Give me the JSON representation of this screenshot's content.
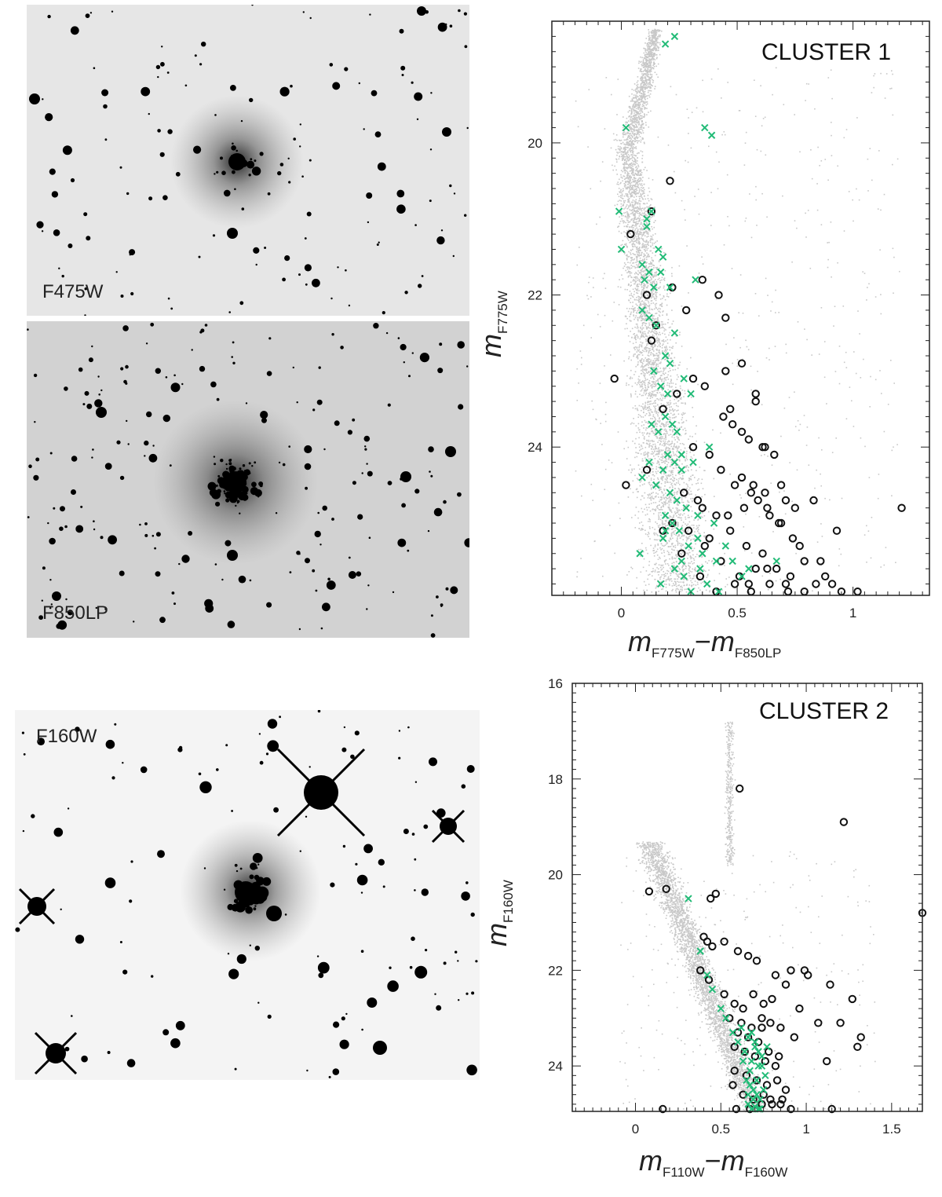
{
  "images": [
    {
      "label": "F475W",
      "background": "#e6e6e6"
    },
    {
      "label": "F850LP",
      "background": "#d2d2d2"
    },
    {
      "label": "F160W",
      "background": "#f4f4f4"
    }
  ],
  "chart_data": [
    {
      "type": "scatter",
      "title": "CLUSTER 1",
      "xlabel": {
        "m": "m",
        "sub1": "F775W",
        "minus": "−",
        "m2": "m",
        "sub2": "F850LP"
      },
      "ylabel": {
        "m": "m",
        "sub": "F775W"
      },
      "xlim": [
        -0.3,
        1.33
      ],
      "ylim": [
        25.95,
        18.4
      ],
      "y_inverted": true,
      "x_ticks": [
        "0",
        "0.5",
        "1"
      ],
      "x_tick_values": [
        0,
        0.5,
        1
      ],
      "y_ticks": [
        "20",
        "22",
        "24"
      ],
      "y_tick_values": [
        20,
        22,
        24
      ],
      "series": [
        {
          "marker": "circle",
          "color": "#111111",
          "x": [
            0.21,
            0.13,
            0.04,
            -0.03,
            0.11,
            0.15,
            0.22,
            0.28,
            0.35,
            0.42,
            0.45,
            0.13,
            0.18,
            0.24,
            0.31,
            0.36,
            0.44,
            0.52,
            0.58,
            0.48,
            0.55,
            0.61,
            0.66,
            0.52,
            0.57,
            0.62,
            0.71,
            0.46,
            0.53,
            0.59,
            0.64,
            0.68,
            0.74,
            0.83,
            0.93,
            1.21,
            0.38,
            0.43,
            0.49,
            0.56,
            0.63,
            0.69,
            0.77,
            0.86,
            0.27,
            0.33,
            0.41,
            0.47,
            0.54,
            0.61,
            0.67,
            0.73,
            0.79,
            0.91,
            0.22,
            0.29,
            0.36,
            0.43,
            0.51,
            0.58,
            0.64,
            0.72,
            0.84,
            0.95,
            1.02,
            0.11,
            0.18,
            0.26,
            0.34,
            0.41,
            0.49,
            0.56,
            0.63,
            0.71,
            0.79,
            0.88,
            0.02,
            0.35,
            0.47,
            0.58,
            0.75,
            0.45,
            0.52,
            0.62,
            0.69,
            0.31,
            0.38,
            0.55
          ],
          "y": [
            20.5,
            20.9,
            21.2,
            23.1,
            22.0,
            22.4,
            21.9,
            22.2,
            21.8,
            22.0,
            22.3,
            22.6,
            23.5,
            23.3,
            23.1,
            23.2,
            23.6,
            22.9,
            23.4,
            23.7,
            23.9,
            24.0,
            24.1,
            24.4,
            24.5,
            24.6,
            24.7,
            24.9,
            24.8,
            24.7,
            24.9,
            25.0,
            25.2,
            24.7,
            25.1,
            24.8,
            24.1,
            24.3,
            24.5,
            24.6,
            24.8,
            25.0,
            25.3,
            25.5,
            24.6,
            24.7,
            24.9,
            25.1,
            25.3,
            25.4,
            25.6,
            25.7,
            25.5,
            25.8,
            25.0,
            25.1,
            25.3,
            25.5,
            25.7,
            25.6,
            25.8,
            25.9,
            25.8,
            25.9,
            25.9,
            24.3,
            25.1,
            25.4,
            25.7,
            25.9,
            25.8,
            25.9,
            25.6,
            25.8,
            25.9,
            25.7,
            24.5,
            24.8,
            23.5,
            23.3,
            24.8,
            23.0,
            23.8,
            24.0,
            24.5,
            24.0,
            25.2,
            25.8
          ]
        },
        {
          "marker": "x",
          "color": "#22bb77",
          "x": [
            0.19,
            0.23,
            0.02,
            0.11,
            0.36,
            0.39,
            -0.01,
            0.13,
            0.16,
            0.11,
            0.0,
            0.18,
            0.09,
            0.12,
            0.17,
            0.1,
            0.14,
            0.21,
            0.32,
            0.09,
            0.12,
            0.15,
            0.23,
            0.19,
            0.21,
            0.14,
            0.17,
            0.2,
            0.27,
            0.3,
            0.13,
            0.19,
            0.22,
            0.16,
            0.24,
            0.12,
            0.2,
            0.23,
            0.08,
            0.18,
            0.26,
            0.31,
            0.15,
            0.21,
            0.24,
            0.19,
            0.28,
            0.33,
            0.22,
            0.25,
            0.18,
            0.29,
            0.35,
            0.41,
            0.23,
            0.27,
            0.34,
            0.09,
            0.17,
            0.3,
            0.37,
            0.42,
            0.48,
            0.55,
            0.19,
            0.26,
            0.33,
            0.4,
            0.45,
            0.52,
            0.67,
            0.26,
            0.38
          ],
          "y": [
            18.7,
            18.6,
            19.8,
            21.0,
            19.8,
            19.9,
            20.9,
            20.9,
            21.4,
            21.1,
            21.4,
            21.5,
            21.6,
            21.7,
            21.7,
            21.8,
            21.9,
            21.9,
            21.8,
            22.2,
            22.3,
            22.4,
            22.5,
            22.8,
            22.9,
            23.0,
            23.2,
            23.3,
            23.1,
            23.3,
            23.7,
            23.6,
            23.7,
            23.8,
            23.8,
            24.2,
            24.1,
            24.2,
            25.4,
            24.3,
            24.1,
            24.2,
            24.5,
            24.6,
            24.7,
            24.9,
            24.8,
            24.9,
            25.0,
            25.1,
            25.2,
            25.3,
            25.4,
            25.5,
            25.6,
            25.7,
            25.6,
            24.4,
            25.8,
            25.9,
            25.8,
            25.9,
            25.5,
            25.6,
            25.1,
            25.5,
            25.2,
            25.0,
            25.3,
            25.7,
            25.5,
            24.3,
            24.0
          ]
        }
      ]
    },
    {
      "type": "scatter",
      "title": "CLUSTER 2",
      "xlabel": {
        "m": "m",
        "sub1": "F110W",
        "minus": "−",
        "m2": "m",
        "sub2": "F160W"
      },
      "ylabel": {
        "m": "m",
        "sub": "F160W"
      },
      "xlim": [
        -0.37,
        1.68
      ],
      "ylim": [
        24.95,
        16.0
      ],
      "y_inverted": true,
      "x_ticks": [
        "0",
        "0.5",
        "1",
        "1.5"
      ],
      "x_tick_values": [
        0,
        0.5,
        1,
        1.5
      ],
      "y_ticks": [
        "16",
        "18",
        "20",
        "22",
        "24"
      ],
      "y_tick_values": [
        16,
        18,
        20,
        22,
        24
      ],
      "series": [
        {
          "marker": "circle",
          "color": "#111111",
          "x": [
            0.61,
            1.22,
            0.08,
            0.18,
            0.44,
            0.47,
            0.4,
            0.42,
            0.45,
            0.52,
            0.6,
            0.66,
            0.38,
            0.43,
            0.71,
            0.82,
            0.91,
            0.99,
            1.01,
            0.88,
            1.14,
            1.27,
            0.96,
            1.07,
            1.2,
            1.32,
            1.3,
            1.12,
            0.52,
            0.58,
            0.63,
            0.69,
            0.75,
            0.8,
            0.55,
            0.62,
            0.68,
            0.74,
            0.79,
            0.85,
            0.93,
            0.6,
            0.66,
            0.72,
            0.78,
            0.84,
            0.58,
            0.64,
            0.7,
            0.76,
            0.82,
            0.58,
            0.65,
            0.71,
            0.77,
            0.83,
            0.88,
            0.57,
            0.63,
            0.69,
            0.75,
            0.8,
            0.86,
            0.59,
            0.67,
            0.74,
            0.79,
            0.85,
            0.91,
            0.74,
            0.16,
            1.15,
            1.68
          ],
          "y": [
            18.2,
            18.9,
            20.35,
            20.3,
            20.5,
            20.4,
            21.3,
            21.4,
            21.5,
            21.4,
            21.6,
            21.7,
            22.0,
            22.2,
            21.8,
            22.1,
            22.0,
            22.0,
            22.1,
            22.3,
            22.3,
            22.6,
            22.8,
            23.1,
            23.1,
            23.4,
            23.6,
            23.9,
            22.5,
            22.7,
            22.8,
            22.5,
            22.7,
            22.6,
            23.0,
            23.1,
            23.2,
            23.0,
            23.1,
            23.2,
            23.4,
            23.3,
            23.4,
            23.5,
            23.7,
            23.8,
            23.6,
            23.7,
            23.8,
            23.9,
            24.0,
            24.1,
            24.2,
            24.3,
            24.4,
            24.3,
            24.5,
            24.4,
            24.6,
            24.7,
            24.6,
            24.8,
            24.7,
            24.9,
            24.9,
            24.8,
            24.7,
            24.8,
            24.9,
            23.2,
            24.9,
            24.9,
            20.8
          ]
        },
        {
          "marker": "x",
          "color": "#22bb77",
          "x": [
            0.31,
            0.38,
            0.42,
            0.45,
            0.5,
            0.53,
            0.57,
            0.6,
            0.62,
            0.64,
            0.66,
            0.68,
            0.7,
            0.72,
            0.74,
            0.76,
            0.65,
            0.67,
            0.69,
            0.71,
            0.73,
            0.66,
            0.68,
            0.7,
            0.72,
            0.63,
            0.67,
            0.71,
            0.75,
            0.69,
            0.73,
            0.77,
            0.68,
            0.7,
            0.72,
            0.74,
            0.66
          ],
          "y": [
            20.5,
            21.6,
            22.1,
            22.4,
            22.8,
            23.0,
            23.3,
            23.5,
            23.2,
            23.7,
            23.4,
            23.9,
            23.6,
            24.0,
            23.8,
            24.2,
            24.3,
            24.4,
            24.5,
            24.6,
            24.7,
            24.8,
            24.9,
            24.85,
            24.9,
            23.9,
            24.1,
            24.3,
            24.5,
            24.7,
            24.9,
            23.6,
            23.3,
            23.5,
            23.7,
            24.0,
            24.6
          ]
        }
      ]
    }
  ]
}
